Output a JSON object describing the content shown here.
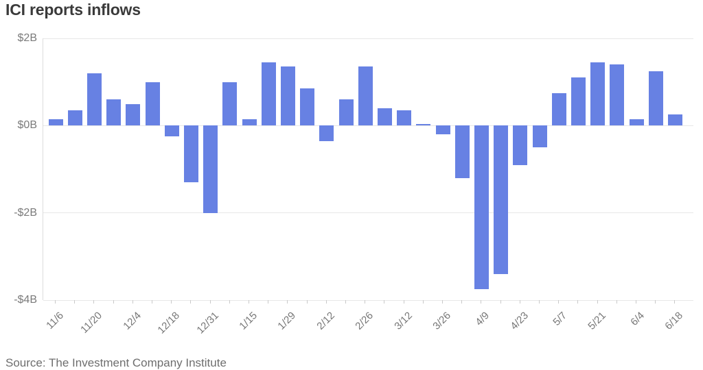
{
  "chart_data": {
    "type": "bar",
    "title": "ICI reports inflows",
    "xlabel": "",
    "ylabel": "",
    "ylim": [
      -4,
      2
    ],
    "grid": true,
    "legend": false,
    "bar_color": "#6781e3",
    "y_ticks": [
      {
        "label": "$2B",
        "value": 2
      },
      {
        "label": "$0B",
        "value": 0
      },
      {
        "label": "-$2B",
        "value": -2
      },
      {
        "label": "-$4B",
        "value": -4
      }
    ],
    "x_tick_labels": [
      "11/6",
      "11/20",
      "12/4",
      "12/18",
      "12/31",
      "1/15",
      "1/29",
      "2/12",
      "2/26",
      "3/12",
      "3/26",
      "4/9",
      "4/23",
      "5/7",
      "5/21",
      "6/4",
      "6/18"
    ],
    "x_label_every": 2,
    "values": [
      0.15,
      0.35,
      1.2,
      0.6,
      0.5,
      1.0,
      -0.25,
      -1.3,
      -2.0,
      1.0,
      0.15,
      1.45,
      1.35,
      0.85,
      -0.35,
      0.6,
      1.35,
      0.4,
      0.35,
      0.03,
      -0.2,
      -1.2,
      -3.75,
      -3.4,
      -0.9,
      -0.5,
      0.75,
      1.1,
      1.45,
      1.4,
      0.15,
      1.25,
      0.25
    ]
  },
  "source": "Source: The Investment Company Institute",
  "colors": {
    "bar": "#6781e3",
    "title_text": "#3a3a3a",
    "axis_text": "#7a7a7a",
    "gridline": "#e7e7e7"
  }
}
